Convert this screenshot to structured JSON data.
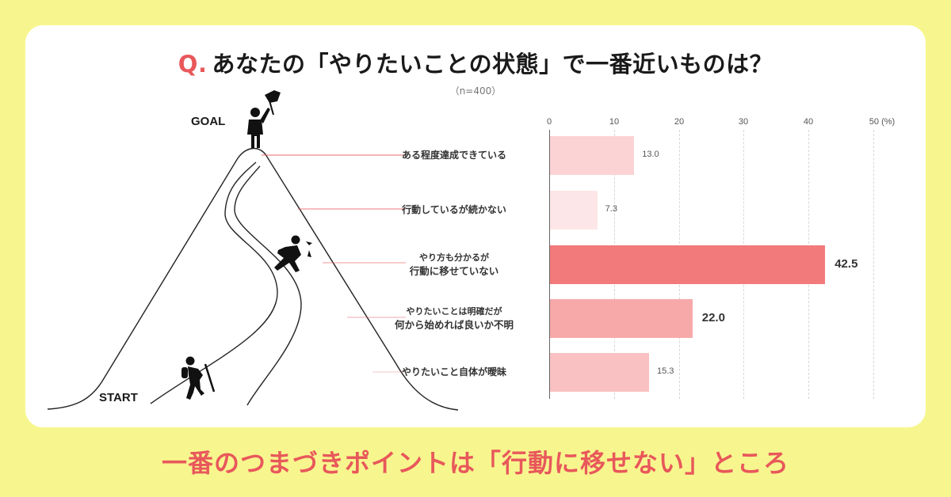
{
  "header": {
    "q_mark": "Q.",
    "title": "あなたの「やりたいことの状態」で一番近いものは？",
    "sample": "（n=400）"
  },
  "illustration": {
    "goal_label": "GOAL",
    "start_label": "START"
  },
  "footer": {
    "message": "一番のつまづきポイントは「行動に移せない」ところ"
  },
  "colors": {
    "background": "#f7f68e",
    "accent": "#e8585b",
    "bar_highlight": "#f37a7b"
  },
  "chart_data": {
    "type": "bar",
    "orientation": "horizontal",
    "title": "あなたの「やりたいことの状態」で一番近いものは？",
    "subtitle": "（n=400）",
    "xlabel": "(%)",
    "xlim": [
      0,
      50
    ],
    "xticks": [
      "0",
      "10",
      "20",
      "30",
      "40",
      "50 (%)"
    ],
    "grid": true,
    "categories": [
      {
        "line1": "ある程度達成できている",
        "line2": ""
      },
      {
        "line1": "行動しているが続かない",
        "line2": ""
      },
      {
        "line1": "やり方も分かるが",
        "line2": "行動に移せていない"
      },
      {
        "line1": "やりたいことは明確だが",
        "line2": "何から始めれば良いか不明"
      },
      {
        "line1": "やりたいこと自体が曖昧",
        "line2": ""
      }
    ],
    "values": [
      13.0,
      7.3,
      42.5,
      22.0,
      15.3
    ],
    "labels": [
      "13.0",
      "7.3",
      "42.5",
      "22.0",
      "15.3"
    ],
    "bar_colors": [
      "#fcd3d5",
      "#fde6e7",
      "#f37a7b",
      "#f7a9aa",
      "#f9c1c2"
    ],
    "emphasized": [
      false,
      false,
      true,
      true,
      false
    ]
  }
}
